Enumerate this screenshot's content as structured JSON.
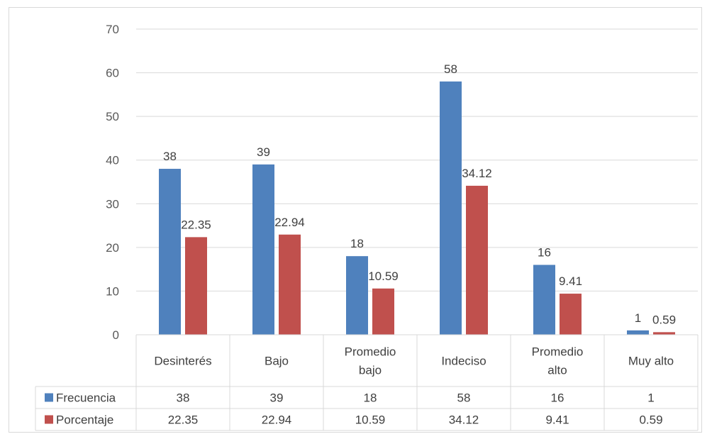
{
  "chart_data": {
    "type": "bar",
    "categories": [
      "Desinterés",
      "Bajo",
      "Promedio bajo",
      "Indeciso",
      "Promedio alto",
      "Muy alto"
    ],
    "category_lines": [
      [
        "Desinterés"
      ],
      [
        "Bajo"
      ],
      [
        "Promedio",
        "bajo"
      ],
      [
        "Indeciso"
      ],
      [
        "Promedio",
        "alto"
      ],
      [
        "Muy alto"
      ]
    ],
    "series": [
      {
        "name": "Frecuencia",
        "values": [
          38,
          39,
          18,
          58,
          16,
          1
        ],
        "labels": [
          "38",
          "39",
          "18",
          "58",
          "16",
          "1"
        ],
        "color": "#4f81bd"
      },
      {
        "name": "Porcentaje",
        "values": [
          22.35,
          22.94,
          10.59,
          34.12,
          9.41,
          0.59
        ],
        "labels": [
          "22.35",
          "22.94",
          "10.59",
          "34.12",
          "9.41",
          "0.59"
        ],
        "color": "#c0504d"
      }
    ],
    "ylim": [
      0,
      70
    ],
    "yticks": [
      "0",
      "10",
      "20",
      "30",
      "40",
      "50",
      "60",
      "70"
    ],
    "grid": true,
    "legend": "data-table",
    "data_table": true
  }
}
